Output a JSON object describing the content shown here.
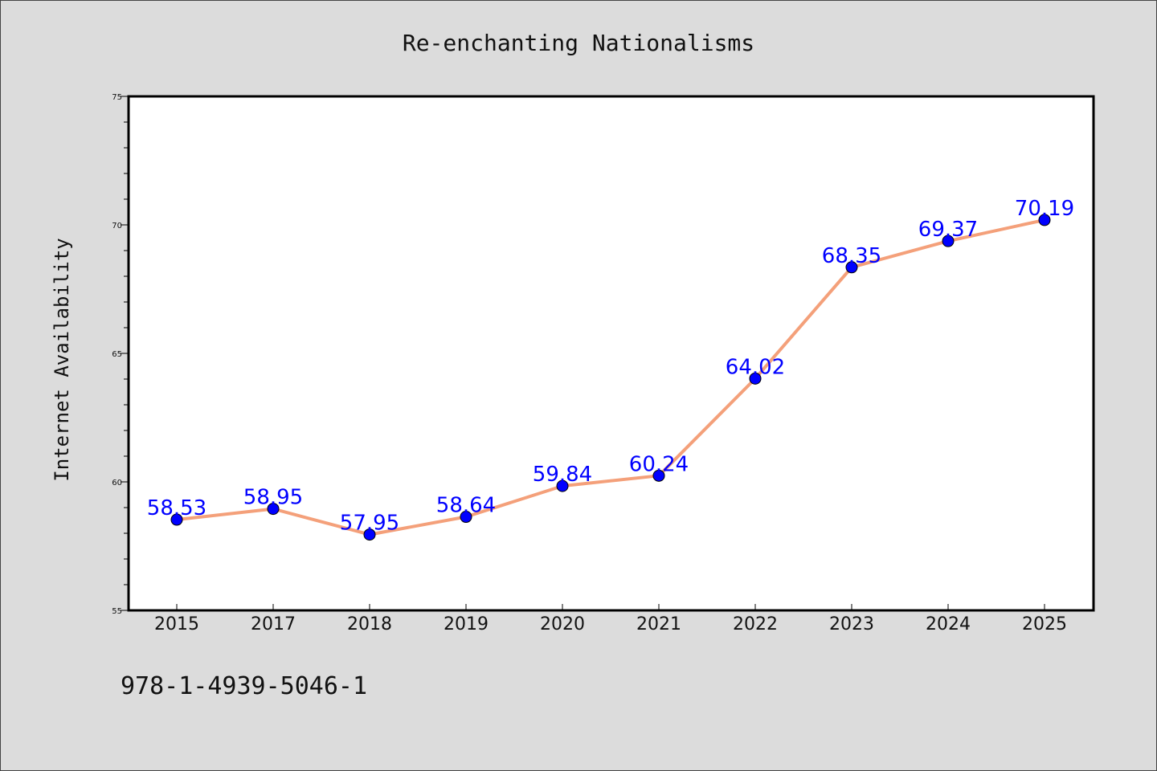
{
  "chart_data": {
    "type": "line",
    "title": "Re-enchanting Nationalisms",
    "xlabel": "",
    "ylabel": "Internet Availability",
    "categories": [
      "2015",
      "2017",
      "2018",
      "2019",
      "2020",
      "2021",
      "2022",
      "2023",
      "2024",
      "2025"
    ],
    "series": [
      {
        "values": [
          58.53,
          58.95,
          57.95,
          58.64,
          59.84,
          60.24,
          64.02,
          68.35,
          69.37,
          70.19
        ],
        "labels": [
          "58.53",
          "58.95",
          "57.95",
          "58.64",
          "59.84",
          "60.24",
          "64.02",
          "68.35",
          "69.37",
          "70.19"
        ],
        "line_color": "#f4a07a",
        "marker_color": "#0000ff"
      }
    ],
    "ylim": [
      55,
      75
    ],
    "yticks": [
      "55",
      "60",
      "65",
      "70",
      "75"
    ],
    "grid": false,
    "legend": "none"
  },
  "footnote": "978-1-4939-5046-1"
}
